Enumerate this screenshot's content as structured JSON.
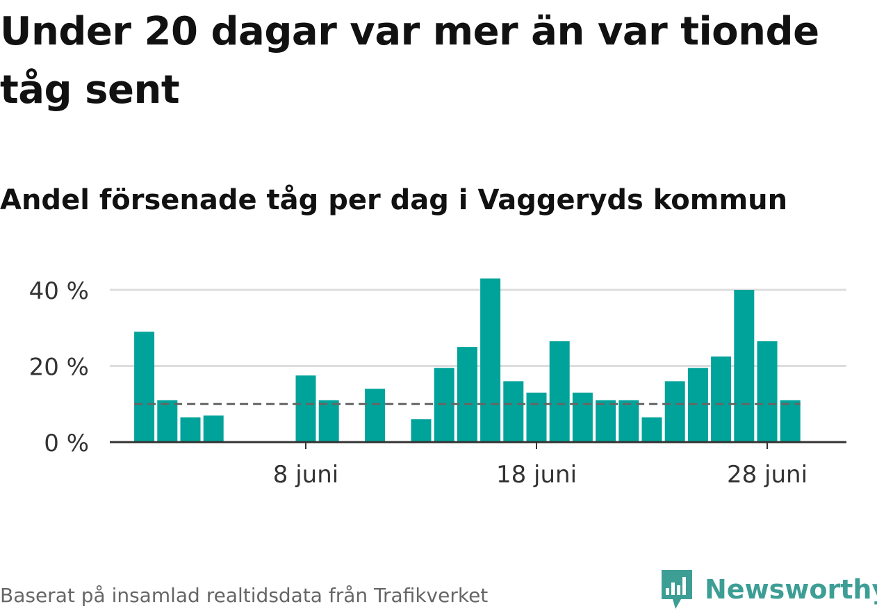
{
  "title": "Under 20 dagar var mer än var tionde tåg sent",
  "subtitle": "Andel försenade tåg per dag i Vaggeryds kommun",
  "source": "Baserat på insamlad realtidsdata från Trafikverket",
  "brand": {
    "name": "Newsworthy",
    "icon": "newsworthy-logo-icon",
    "color": "#3d9e95"
  },
  "colors": {
    "bar": "#00a39a",
    "reference_line": "#666666",
    "grid": "#dddddd",
    "axis": "#333333"
  },
  "chart_data": {
    "type": "bar",
    "x": [
      "1 juni",
      "2 juni",
      "3 juni",
      "4 juni",
      "5 juni",
      "6 juni",
      "7 juni",
      "8 juni",
      "9 juni",
      "10 juni",
      "11 juni",
      "12 juni",
      "13 juni",
      "14 juni",
      "15 juni",
      "16 juni",
      "17 juni",
      "18 juni",
      "19 juni",
      "20 juni",
      "21 juni",
      "22 juni",
      "23 juni",
      "24 juni",
      "25 juni",
      "26 juni",
      "27 juni",
      "28 juni",
      "29 juni",
      "30 juni"
    ],
    "values": [
      29,
      11,
      6.5,
      7,
      0,
      0,
      0,
      17.5,
      11,
      0,
      14,
      0,
      6,
      19.5,
      25,
      43,
      16,
      13,
      26.5,
      13,
      11,
      11,
      6.5,
      16,
      19.5,
      22.5,
      40,
      26.5,
      11,
      0
    ],
    "ylim": [
      0,
      45
    ],
    "yticks": [
      0,
      20,
      40
    ],
    "ytick_labels": [
      "0 %",
      "20 %",
      "40 %"
    ],
    "xticks": [
      "8 juni",
      "18 juni",
      "28 juni"
    ],
    "reference_line": 10,
    "grid": true,
    "xlabel": "",
    "ylabel": ""
  }
}
